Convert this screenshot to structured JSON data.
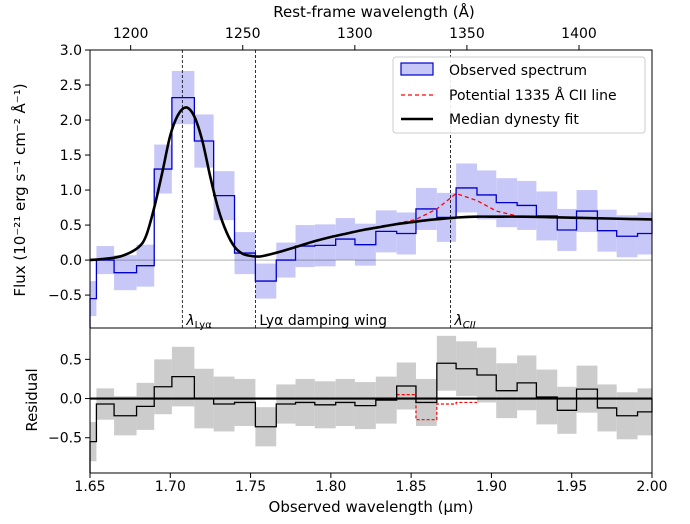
{
  "chart_data": {
    "type": "line",
    "x_axis": {
      "label": "Observed wavelength (μm)",
      "lim": [
        1.65,
        2.0
      ],
      "ticks": [
        "1.65",
        "1.70",
        "1.75",
        "1.80",
        "1.85",
        "1.90",
        "1.95",
        "2.00"
      ],
      "tick_values": [
        1.65,
        1.7,
        1.75,
        1.8,
        1.85,
        1.9,
        1.95,
        2.0
      ]
    },
    "top_axis": {
      "label": "Rest-frame wavelength (Å)",
      "ticks": [
        "1200",
        "1250",
        "1300",
        "1350",
        "1400"
      ],
      "tick_values": [
        1200,
        1250,
        1300,
        1350,
        1400
      ],
      "observed_per_restframe": 0.0013961
    },
    "main_panel": {
      "ylabel": "Flux (10⁻²¹ erg s⁻¹ cm⁻² Å⁻¹)",
      "ylim": [
        -0.97,
        3.0
      ],
      "ticks": [
        "−0.5",
        "0.0",
        "0.5",
        "1.0",
        "1.5",
        "2.0",
        "2.5",
        "3.0"
      ],
      "tick_values": [
        -0.5,
        0.0,
        0.5,
        1.0,
        1.5,
        2.0,
        2.5,
        3.0
      ],
      "legend_position": "top-right",
      "legend": [
        {
          "label": "Observed spectrum",
          "style": "step",
          "color": "#0000cc",
          "fill": "#c8c8f8"
        },
        {
          "label": "Potential 1335 Å CII line",
          "style": "dashed",
          "color": "#ff0000"
        },
        {
          "label": "Median dynesty fit",
          "style": "solid",
          "color": "#000000"
        }
      ],
      "vlines": [
        {
          "x": 1.7075,
          "label": "λ",
          "label_sub": "Lyα"
        },
        {
          "x": 1.753,
          "label": "Lyα damping wing",
          "label_sub": ""
        },
        {
          "x": 1.8745,
          "label": "λ",
          "label_sub": "CII"
        }
      ],
      "bin_edges": [
        1.65,
        1.654,
        1.665,
        1.679,
        1.69,
        1.701,
        1.715,
        1.727,
        1.74,
        1.753,
        1.766,
        1.778,
        1.79,
        1.803,
        1.815,
        1.828,
        1.841,
        1.853,
        1.866,
        1.878,
        1.891,
        1.903,
        1.916,
        1.928,
        1.941,
        1.953,
        1.966,
        1.978,
        1.991,
        2.0
      ],
      "observed_flux": [
        -0.55,
        0.0,
        -0.18,
        -0.08,
        1.3,
        2.32,
        1.7,
        0.92,
        0.1,
        -0.3,
        0.0,
        0.2,
        0.21,
        0.3,
        0.22,
        0.41,
        0.38,
        0.73,
        0.61,
        1.03,
        0.93,
        0.82,
        0.78,
        0.63,
        0.43,
        0.7,
        0.42,
        0.34,
        0.38,
        0.58
      ],
      "flux_error": [
        0.25,
        0.2,
        0.25,
        0.3,
        0.35,
        0.38,
        0.38,
        0.35,
        0.3,
        0.25,
        0.25,
        0.3,
        0.3,
        0.3,
        0.3,
        0.3,
        0.3,
        0.3,
        0.35,
        0.35,
        0.35,
        0.35,
        0.35,
        0.35,
        0.3,
        0.3,
        0.3,
        0.3,
        0.3,
        0.3
      ],
      "cii_line": {
        "x": [
          1.841,
          1.853,
          1.866,
          1.878,
          1.891,
          1.903,
          1.916
        ],
        "y": [
          0.52,
          0.58,
          0.73,
          0.95,
          0.85,
          0.7,
          0.63
        ]
      },
      "fit_curve": {
        "x": [
          1.65,
          1.66,
          1.67,
          1.68,
          1.685,
          1.69,
          1.695,
          1.7,
          1.705,
          1.71,
          1.715,
          1.72,
          1.725,
          1.73,
          1.735,
          1.74,
          1.745,
          1.75,
          1.755,
          1.76,
          1.77,
          1.78,
          1.79,
          1.8,
          1.81,
          1.82,
          1.83,
          1.84,
          1.85,
          1.86,
          1.87,
          1.88,
          1.89,
          1.9,
          1.92,
          1.94,
          1.96,
          1.98,
          2.0
        ],
        "y": [
          0.0,
          0.02,
          0.06,
          0.18,
          0.35,
          0.75,
          1.25,
          1.78,
          2.08,
          2.18,
          2.05,
          1.7,
          1.18,
          0.72,
          0.4,
          0.19,
          0.09,
          0.06,
          0.05,
          0.07,
          0.13,
          0.2,
          0.27,
          0.33,
          0.38,
          0.43,
          0.47,
          0.51,
          0.54,
          0.57,
          0.59,
          0.61,
          0.62,
          0.62,
          0.62,
          0.61,
          0.6,
          0.59,
          0.58
        ]
      }
    },
    "residual_panel": {
      "ylabel": "Residual",
      "ylim": [
        -0.95,
        0.9
      ],
      "ticks": [
        "−0.5",
        "0.0",
        "0.5"
      ],
      "tick_values": [
        -0.5,
        0.0,
        0.5
      ],
      "residual": [
        -0.55,
        -0.07,
        -0.22,
        -0.1,
        0.15,
        0.28,
        0.0,
        -0.07,
        -0.05,
        -0.36,
        -0.07,
        -0.05,
        -0.08,
        -0.05,
        -0.09,
        -0.02,
        0.16,
        -0.05,
        0.45,
        0.38,
        0.3,
        0.1,
        0.2,
        0.02,
        -0.15,
        0.12,
        -0.12,
        -0.22,
        -0.17,
        0.0
      ],
      "residual_error": [
        0.25,
        0.2,
        0.25,
        0.3,
        0.35,
        0.38,
        0.38,
        0.35,
        0.3,
        0.25,
        0.25,
        0.3,
        0.3,
        0.3,
        0.3,
        0.3,
        0.3,
        0.3,
        0.35,
        0.35,
        0.35,
        0.35,
        0.35,
        0.35,
        0.3,
        0.3,
        0.3,
        0.3,
        0.3,
        0.3
      ],
      "cii_residual": {
        "x_range": [
          1.841,
          1.891
        ],
        "values": [
          0.05,
          -0.27,
          -0.07,
          -0.05
        ]
      }
    }
  }
}
